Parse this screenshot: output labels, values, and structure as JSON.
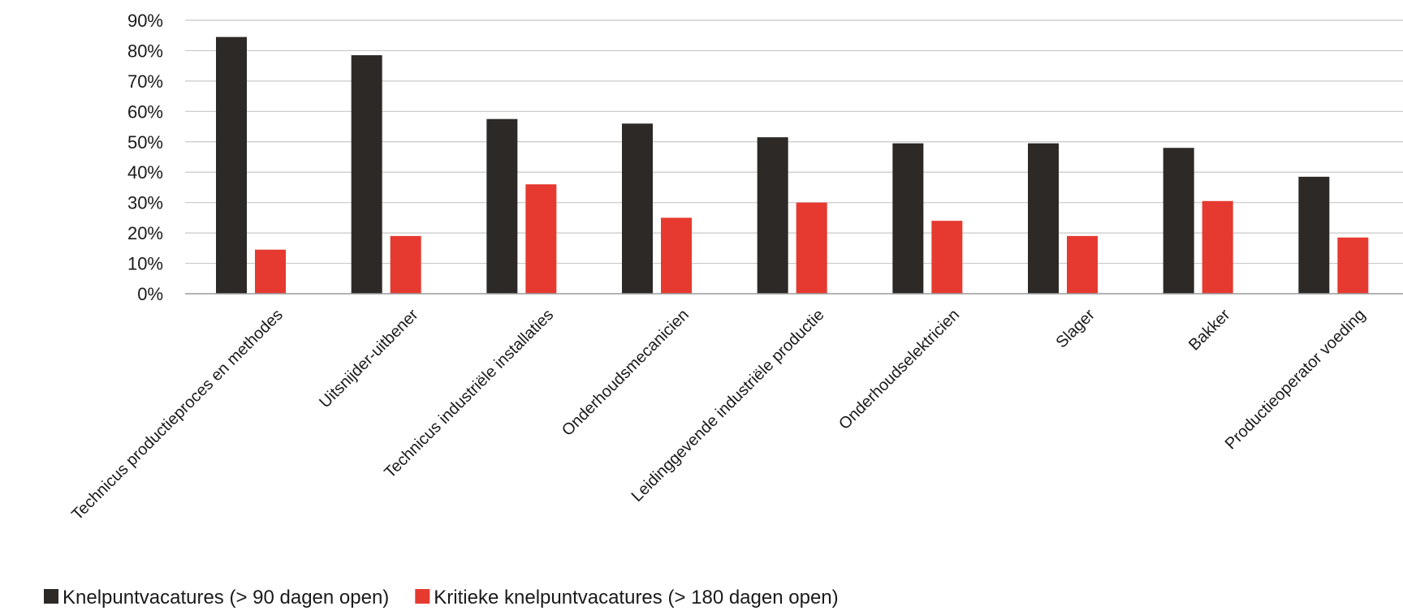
{
  "chart_data": {
    "type": "bar",
    "categories": [
      "Technicus productieproces en methodes",
      "Uitsnijder-uitbener",
      "Technicus industriële installaties",
      "Onderhoudsmecanicien",
      "Leidinggevende industriële productie",
      "Onderhoudselektricien",
      "Slager",
      "Bakker",
      "Productieoperator voeding"
    ],
    "series": [
      {
        "name": "Knelpuntvacatures (> 90 dagen open)",
        "color": "#2d2926",
        "values": [
          84.5,
          78.5,
          57.5,
          56,
          51.5,
          49.5,
          49.5,
          48,
          38.5
        ]
      },
      {
        "name": "Kritieke knelpuntvacatures (> 180 dagen open)",
        "color": "#e63a30",
        "values": [
          14.5,
          19,
          36,
          25,
          30,
          24,
          19,
          30.5,
          18.5
        ]
      }
    ],
    "yticks": [
      "0%",
      "10%",
      "20%",
      "30%",
      "40%",
      "50%",
      "60%",
      "70%",
      "80%",
      "90%"
    ],
    "ylim": [
      0,
      90
    ],
    "grid": true,
    "legend_position": "bottom-left"
  }
}
